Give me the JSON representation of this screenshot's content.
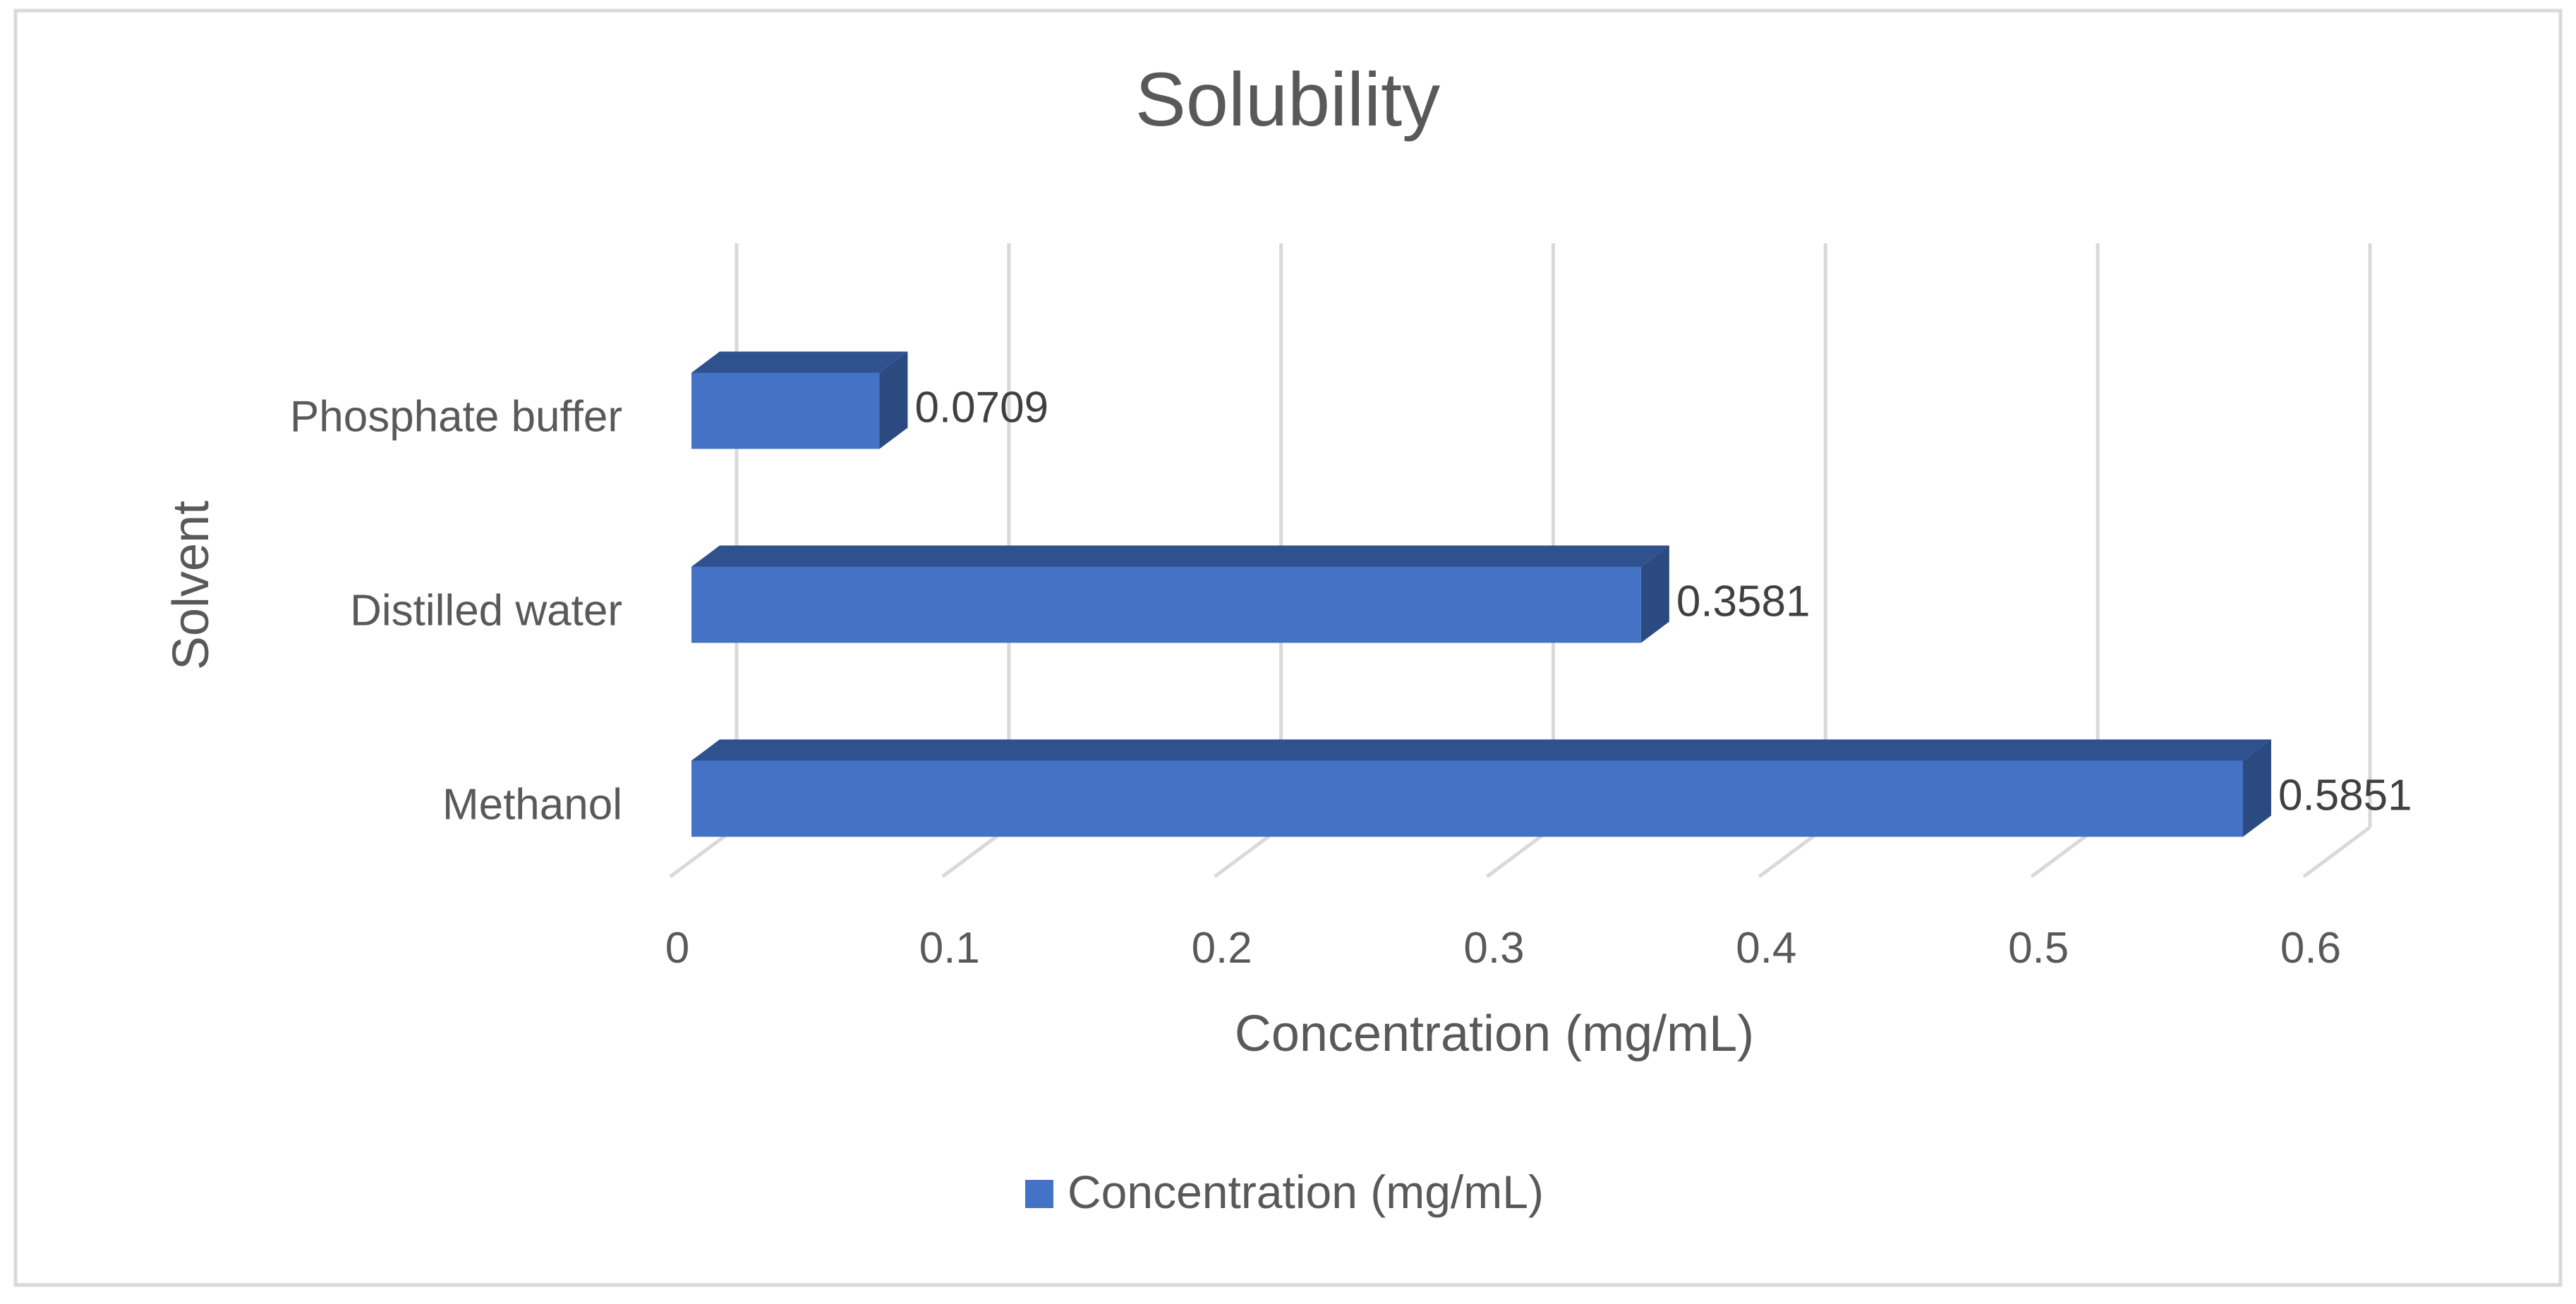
{
  "chart_data": {
    "type": "bar",
    "orientation": "horizontal",
    "style": "3d",
    "title": "Solubility",
    "xlabel": "Concentration (mg/mL)",
    "ylabel": "Solvent",
    "categories": [
      "Phosphate buffer",
      "Distilled water",
      "Methanol"
    ],
    "series": [
      {
        "name": "Concentration (mg/mL)",
        "values": [
          0.0709,
          0.3581,
          0.5851
        ],
        "data_labels": [
          "0.0709",
          "0.3581",
          "0.5851"
        ]
      }
    ],
    "xlim": [
      0,
      0.6
    ],
    "x_ticks": [
      "0",
      "0.1",
      "0.2",
      "0.3",
      "0.4",
      "0.5",
      "0.6"
    ],
    "grid": true,
    "legend": "bottom",
    "colors": {
      "bar_front": "#4472c4",
      "bar_top": "#2f528f",
      "bar_side": "#2b4a80",
      "grid": "#d9d9d9",
      "text": "#595959",
      "label_text": "#404040",
      "border": "#d9d9d9"
    }
  }
}
